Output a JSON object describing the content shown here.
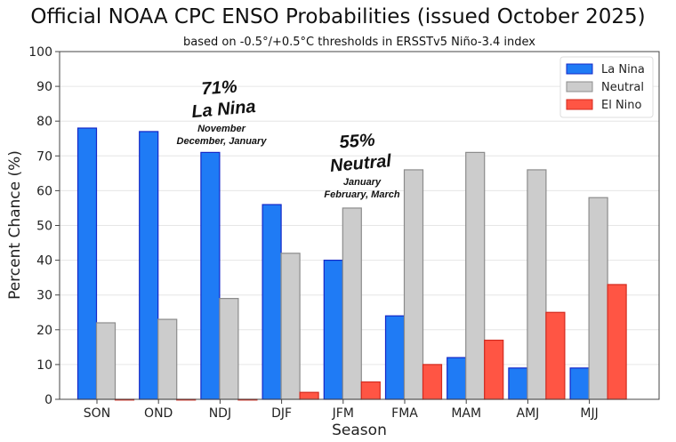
{
  "chart_data": {
    "type": "bar",
    "title": "Official NOAA CPC ENSO Probabilities (issued October 2025)",
    "subtitle": "based on -0.5°/+0.5°C thresholds in ERSSTv5 Niño-3.4 index",
    "xlabel": "Season",
    "ylabel": "Percent Chance (%)",
    "ylim": [
      0,
      100
    ],
    "yticks": [
      0,
      10,
      20,
      30,
      40,
      50,
      60,
      70,
      80,
      90,
      100
    ],
    "grid": true,
    "legend_position": "top-right",
    "categories": [
      "SON",
      "OND",
      "NDJ",
      "DJF",
      "JFM",
      "FMA",
      "MAM",
      "AMJ",
      "MJJ"
    ],
    "series": [
      {
        "name": "La Nina",
        "color": "#1f7bf5",
        "edge": "#1428c8",
        "values": [
          78,
          77,
          71,
          56,
          40,
          24,
          12,
          9,
          9
        ]
      },
      {
        "name": "Neutral",
        "color": "#cccccc",
        "edge": "#8c8c8c",
        "values": [
          22,
          23,
          29,
          42,
          55,
          66,
          71,
          66,
          58
        ]
      },
      {
        "name": "El Nino",
        "color": "#ff5544",
        "edge": "#d42a1e",
        "values": [
          0,
          0,
          0,
          2,
          5,
          10,
          17,
          25,
          33
        ]
      }
    ],
    "annotations": [
      {
        "headline": "71%",
        "label": "La Nina",
        "detail_line1": "November",
        "detail_line2": "December, January"
      },
      {
        "headline": "55%",
        "label": "Neutral",
        "detail_line1": "January",
        "detail_line2": "February, March"
      }
    ]
  }
}
